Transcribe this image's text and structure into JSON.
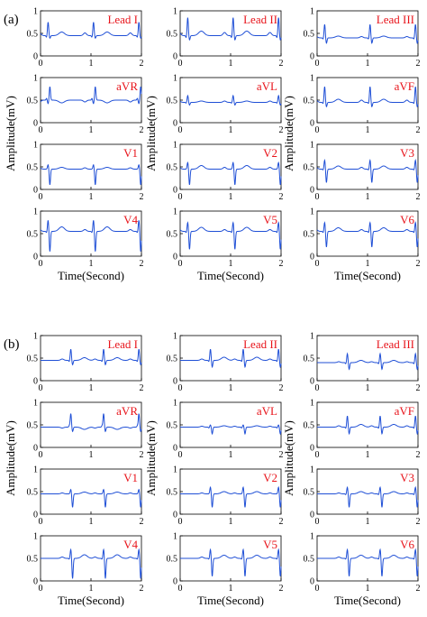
{
  "figure": {
    "colors": {
      "trace": "#1f4fd6",
      "lead_label": "#e8141b",
      "axis": "#000000",
      "text": "#000000"
    },
    "x_tick_labels": [
      "0",
      "1",
      "2"
    ],
    "y_tick_labels": [
      "0",
      "0.5",
      "1"
    ]
  },
  "chart_data": [
    {
      "panel": "(a)",
      "type": "line",
      "xlabel": "Time(Second)",
      "ylabel": "Amplitude(mV)",
      "xlim": [
        0,
        2
      ],
      "ylim": [
        0,
        1
      ],
      "grid": false,
      "leads": [
        {
          "name": "Lead I",
          "baseline": 0.45,
          "beats": [
            0.15,
            1.05,
            1.95
          ],
          "p": 0.06,
          "q": -0.04,
          "r": 0.3,
          "s": -0.06,
          "t": 0.08
        },
        {
          "name": "Lead II",
          "baseline": 0.45,
          "beats": [
            0.15,
            1.05,
            1.95
          ],
          "p": 0.07,
          "q": -0.05,
          "r": 0.4,
          "s": -0.1,
          "t": 0.1
        },
        {
          "name": "Lead III",
          "baseline": 0.4,
          "beats": [
            0.15,
            1.05,
            1.95
          ],
          "p": 0.03,
          "q": -0.03,
          "r": 0.3,
          "s": -0.12,
          "t": 0.04
        },
        {
          "name": "aVR",
          "baseline": 0.5,
          "beats": [
            0.15,
            1.05,
            1.95
          ],
          "p": -0.04,
          "q": 0.04,
          "r": -0.08,
          "s": 0.3,
          "t": -0.06
        },
        {
          "name": "aVL",
          "baseline": 0.45,
          "beats": [
            0.15,
            1.05,
            1.95
          ],
          "p": 0.03,
          "q": -0.02,
          "r": 0.15,
          "s": -0.06,
          "t": 0.03
        },
        {
          "name": "aVF",
          "baseline": 0.45,
          "beats": [
            0.15,
            1.05,
            1.95
          ],
          "p": 0.05,
          "q": -0.03,
          "r": 0.35,
          "s": -0.1,
          "t": 0.07
        },
        {
          "name": "V1",
          "baseline": 0.45,
          "beats": [
            0.15,
            1.05,
            1.95
          ],
          "p": 0.03,
          "q": 0.0,
          "r": 0.1,
          "s": -0.35,
          "t": 0.04
        },
        {
          "name": "V2",
          "baseline": 0.45,
          "beats": [
            0.15,
            1.05,
            1.95
          ],
          "p": 0.04,
          "q": 0.0,
          "r": 0.15,
          "s": -0.35,
          "t": 0.08
        },
        {
          "name": "V3",
          "baseline": 0.45,
          "beats": [
            0.15,
            1.05,
            1.95
          ],
          "p": 0.04,
          "q": -0.02,
          "r": 0.2,
          "s": -0.3,
          "t": 0.07
        },
        {
          "name": "V4",
          "baseline": 0.55,
          "beats": [
            0.15,
            1.05,
            1.95
          ],
          "p": 0.04,
          "q": -0.03,
          "r": 0.25,
          "s": -0.45,
          "t": 0.1
        },
        {
          "name": "V5",
          "baseline": 0.55,
          "beats": [
            0.15,
            1.05,
            1.95
          ],
          "p": 0.04,
          "q": -0.03,
          "r": 0.2,
          "s": -0.4,
          "t": 0.09
        },
        {
          "name": "V6",
          "baseline": 0.55,
          "beats": [
            0.15,
            1.05,
            1.95
          ],
          "p": 0.04,
          "q": -0.03,
          "r": 0.2,
          "s": -0.35,
          "t": 0.08
        }
      ]
    },
    {
      "panel": "(b)",
      "type": "line",
      "xlabel": "Time(Second)",
      "ylabel": "Amplitude(mV)",
      "xlim": [
        0,
        2
      ],
      "ylim": [
        0,
        1
      ],
      "grid": false,
      "leads": [
        {
          "name": "Lead I",
          "baseline": 0.45,
          "beats": [
            0.6,
            1.25,
            1.95
          ],
          "p": 0.03,
          "q": -0.03,
          "r": 0.25,
          "s": -0.1,
          "t": 0.06
        },
        {
          "name": "Lead II",
          "baseline": 0.45,
          "beats": [
            0.6,
            1.25,
            1.95
          ],
          "p": 0.03,
          "q": -0.03,
          "r": 0.25,
          "s": -0.15,
          "t": 0.07
        },
        {
          "name": "Lead III",
          "baseline": 0.4,
          "beats": [
            0.6,
            1.25,
            1.95
          ],
          "p": 0.02,
          "q": -0.03,
          "r": 0.2,
          "s": -0.15,
          "t": 0.05
        },
        {
          "name": "aVR",
          "baseline": 0.45,
          "beats": [
            0.6,
            1.25,
            1.95
          ],
          "p": -0.02,
          "q": 0.03,
          "r": 0.3,
          "s": -0.1,
          "t": -0.05
        },
        {
          "name": "aVL",
          "baseline": 0.45,
          "beats": [
            0.6,
            1.25,
            1.95
          ],
          "p": 0.02,
          "q": -0.02,
          "r": 0.05,
          "s": -0.15,
          "t": 0.03
        },
        {
          "name": "aVF",
          "baseline": 0.45,
          "beats": [
            0.6,
            1.25,
            1.95
          ],
          "p": 0.03,
          "q": -0.03,
          "r": 0.25,
          "s": -0.15,
          "t": 0.06
        },
        {
          "name": "V1",
          "baseline": 0.45,
          "beats": [
            0.6,
            1.25,
            1.95
          ],
          "p": 0.02,
          "q": 0.0,
          "r": 0.1,
          "s": -0.3,
          "t": 0.04
        },
        {
          "name": "V2",
          "baseline": 0.45,
          "beats": [
            0.6,
            1.25,
            1.95
          ],
          "p": 0.02,
          "q": 0.0,
          "r": 0.15,
          "s": -0.3,
          "t": 0.05
        },
        {
          "name": "V3",
          "baseline": 0.45,
          "beats": [
            0.6,
            1.25,
            1.95
          ],
          "p": 0.02,
          "q": -0.02,
          "r": 0.15,
          "s": -0.3,
          "t": 0.05
        },
        {
          "name": "V4",
          "baseline": 0.5,
          "beats": [
            0.6,
            1.25,
            1.95
          ],
          "p": 0.03,
          "q": -0.02,
          "r": 0.2,
          "s": -0.45,
          "t": 0.08
        },
        {
          "name": "V5",
          "baseline": 0.5,
          "beats": [
            0.6,
            1.25,
            1.95
          ],
          "p": 0.03,
          "q": -0.02,
          "r": 0.2,
          "s": -0.4,
          "t": 0.07
        },
        {
          "name": "V6",
          "baseline": 0.5,
          "beats": [
            0.6,
            1.25,
            1.95
          ],
          "p": 0.03,
          "q": -0.02,
          "r": 0.2,
          "s": -0.4,
          "t": 0.07
        }
      ]
    }
  ]
}
